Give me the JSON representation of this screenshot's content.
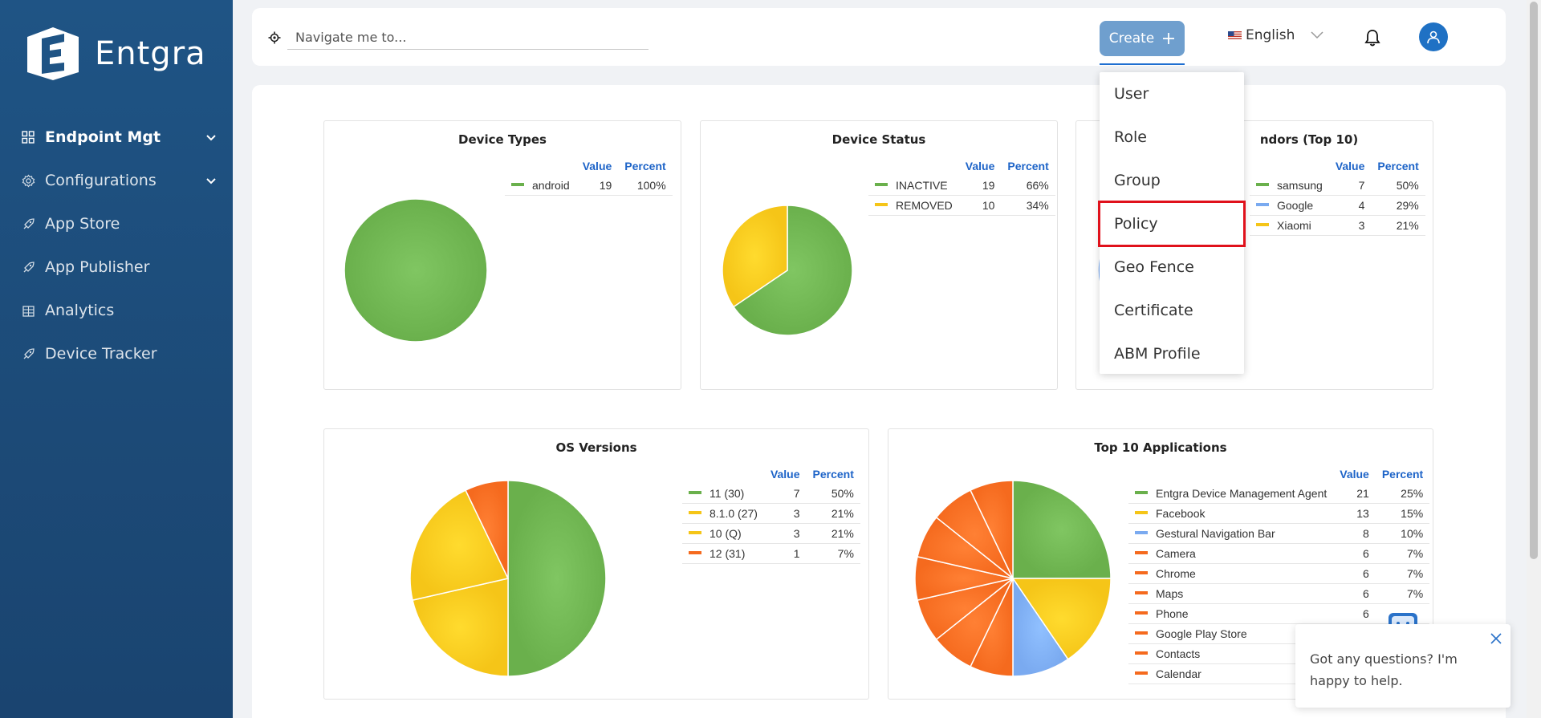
{
  "brand": {
    "name": "Entgra"
  },
  "sidebar": {
    "items": [
      {
        "label": "Endpoint Mgt",
        "icon": "grid-icon",
        "active": true,
        "has_chevron": true
      },
      {
        "label": "Configurations",
        "icon": "gear-icon",
        "active": false,
        "has_chevron": true
      },
      {
        "label": "App Store",
        "icon": "rocket-icon",
        "active": false,
        "has_chevron": false
      },
      {
        "label": "App Publisher",
        "icon": "rocket-icon",
        "active": false,
        "has_chevron": false
      },
      {
        "label": "Analytics",
        "icon": "building-icon",
        "active": false,
        "has_chevron": false
      },
      {
        "label": "Device Tracker",
        "icon": "rocket-icon",
        "active": false,
        "has_chevron": false
      }
    ]
  },
  "header": {
    "search_placeholder": "Navigate me to...",
    "create_label": "Create",
    "language": "English"
  },
  "create_menu": {
    "items": [
      "User",
      "Role",
      "Group",
      "Policy",
      "Geo Fence",
      "Certificate",
      "ABM Profile"
    ],
    "highlighted": "Policy"
  },
  "legend_headers": {
    "value": "Value",
    "percent": "Percent"
  },
  "colors": {
    "green": "#6ab04c",
    "yellow": "#f5c518",
    "blue": "#7aaaf0",
    "orange": "#f56a1e",
    "accent": "#1e64c8"
  },
  "chart_data": [
    {
      "type": "pie",
      "title": "Device Types",
      "series": [
        {
          "label": "android",
          "value": 19,
          "percent": "100%",
          "color": "#6ab04c"
        }
      ]
    },
    {
      "type": "pie",
      "title": "Device Status",
      "series": [
        {
          "label": "INACTIVE",
          "value": 19,
          "percent": "66%",
          "color": "#6ab04c"
        },
        {
          "label": "REMOVED",
          "value": 10,
          "percent": "34%",
          "color": "#f5c518"
        }
      ]
    },
    {
      "type": "pie",
      "title": "ndors (Top 10)",
      "series": [
        {
          "label": "samsung",
          "value": 7,
          "percent": "50%",
          "color": "#6ab04c"
        },
        {
          "label": "Google",
          "value": 4,
          "percent": "29%",
          "color": "#7aaaf0"
        },
        {
          "label": "Xiaomi",
          "value": 3,
          "percent": "21%",
          "color": "#f5c518"
        }
      ]
    },
    {
      "type": "pie",
      "title": "OS Versions",
      "series": [
        {
          "label": "11 (30)",
          "value": 7,
          "percent": "50%",
          "color": "#6ab04c"
        },
        {
          "label": "8.1.0 (27)",
          "value": 3,
          "percent": "21%",
          "color": "#f5c518"
        },
        {
          "label": "10 (Q)",
          "value": 3,
          "percent": "21%",
          "color": "#f5c518"
        },
        {
          "label": "12 (31)",
          "value": 1,
          "percent": "7%",
          "color": "#f56a1e"
        }
      ]
    },
    {
      "type": "pie",
      "title": "Top 10 Applications",
      "series": [
        {
          "label": "Entgra Device Management Agent",
          "value": 21,
          "percent": "25%",
          "color": "#6ab04c"
        },
        {
          "label": "Facebook",
          "value": 13,
          "percent": "15%",
          "color": "#f5c518"
        },
        {
          "label": "Gestural Navigation Bar",
          "value": 8,
          "percent": "10%",
          "color": "#7aaaf0"
        },
        {
          "label": "Camera",
          "value": 6,
          "percent": "7%",
          "color": "#f56a1e"
        },
        {
          "label": "Chrome",
          "value": 6,
          "percent": "7%",
          "color": "#f56a1e"
        },
        {
          "label": "Maps",
          "value": 6,
          "percent": "7%",
          "color": "#f56a1e"
        },
        {
          "label": "Phone",
          "value": 6,
          "percent": "",
          "color": "#f56a1e"
        },
        {
          "label": "Google Play Store",
          "value": 6,
          "percent": "",
          "color": "#f56a1e"
        },
        {
          "label": "Contacts",
          "value": 6,
          "percent": "",
          "color": "#f56a1e"
        },
        {
          "label": "Calendar",
          "value": 6,
          "percent": "",
          "color": "#f56a1e"
        }
      ],
      "visible_value_rows": 7,
      "visible_percent_rows": 6
    }
  ],
  "chat": {
    "message": "Got any questions? I'm happy to help."
  }
}
